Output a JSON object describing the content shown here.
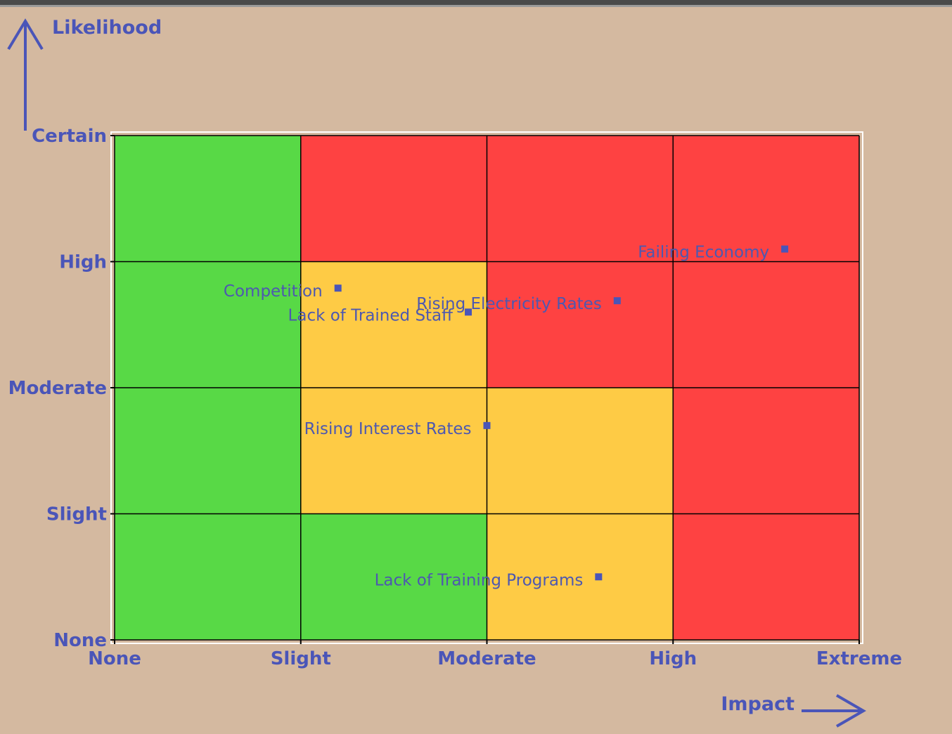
{
  "chart_data": {
    "type": "scatter",
    "xlabel": "Impact",
    "ylabel": "Likelihood",
    "xlim": [
      0,
      4
    ],
    "ylim": [
      0,
      4
    ],
    "xticks": [
      {
        "value": 0,
        "label": "None"
      },
      {
        "value": 1,
        "label": "Slight"
      },
      {
        "value": 2,
        "label": "Moderate"
      },
      {
        "value": 3,
        "label": "High"
      },
      {
        "value": 4,
        "label": "Extreme"
      }
    ],
    "yticks": [
      {
        "value": 0,
        "label": "None"
      },
      {
        "value": 1,
        "label": "Slight"
      },
      {
        "value": 2,
        "label": "Moderate"
      },
      {
        "value": 3,
        "label": "High"
      },
      {
        "value": 4,
        "label": "Certain"
      }
    ],
    "grid": true,
    "cell_colors": [
      [
        "#58d946",
        "#58d946",
        "#fecb45",
        "#fe4242"
      ],
      [
        "#58d946",
        "#fecb45",
        "#fecb45",
        "#fe4242"
      ],
      [
        "#58d946",
        "#fecb45",
        "#fe4242",
        "#fe4242"
      ],
      [
        "#58d946",
        "#fe4242",
        "#fe4242",
        "#fe4242"
      ]
    ],
    "marker_color": "#4a55b8",
    "points": [
      {
        "label": "Failing Economy",
        "x": 3.6,
        "y": 3.1
      },
      {
        "label": "Competition",
        "x": 1.2,
        "y": 2.79
      },
      {
        "label": "Rising Electricity Rates",
        "x": 2.7,
        "y": 2.69
      },
      {
        "label": "Lack of Trained Staff",
        "x": 1.9,
        "y": 2.6
      },
      {
        "label": "Rising Interest Rates",
        "x": 2.0,
        "y": 1.7
      },
      {
        "label": "Lack of Training Programs",
        "x": 2.6,
        "y": 0.5
      }
    ]
  }
}
